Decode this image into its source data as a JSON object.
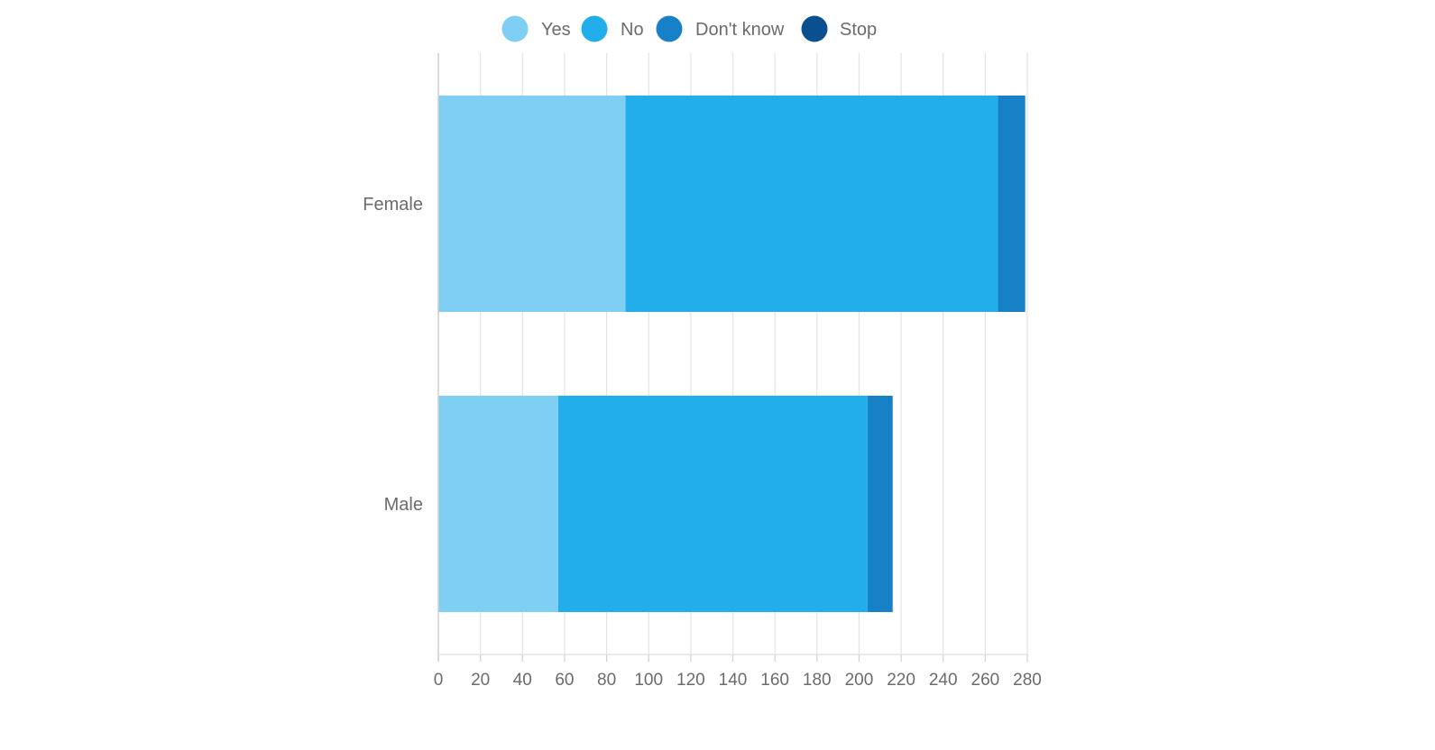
{
  "chart_data": {
    "type": "bar",
    "orientation": "horizontal",
    "stacked": true,
    "title": "",
    "xlabel": "",
    "ylabel": "",
    "categories": [
      "Female",
      "Male"
    ],
    "series": [
      {
        "name": "Yes",
        "color": "#7fcef3",
        "values": [
          89,
          57
        ]
      },
      {
        "name": "No",
        "color": "#21aeeb",
        "values": [
          177,
          147
        ]
      },
      {
        "name": "Don't know",
        "color": "#1781c8",
        "values": [
          13,
          12
        ]
      },
      {
        "name": "Stop",
        "color": "#0b4f91",
        "values": [
          0,
          0
        ]
      }
    ],
    "xlim": [
      0,
      280
    ],
    "xticks": [
      0,
      20,
      40,
      60,
      80,
      100,
      120,
      140,
      160,
      180,
      200,
      220,
      240,
      260,
      280
    ],
    "grid": true,
    "legend_position": "top-center"
  }
}
